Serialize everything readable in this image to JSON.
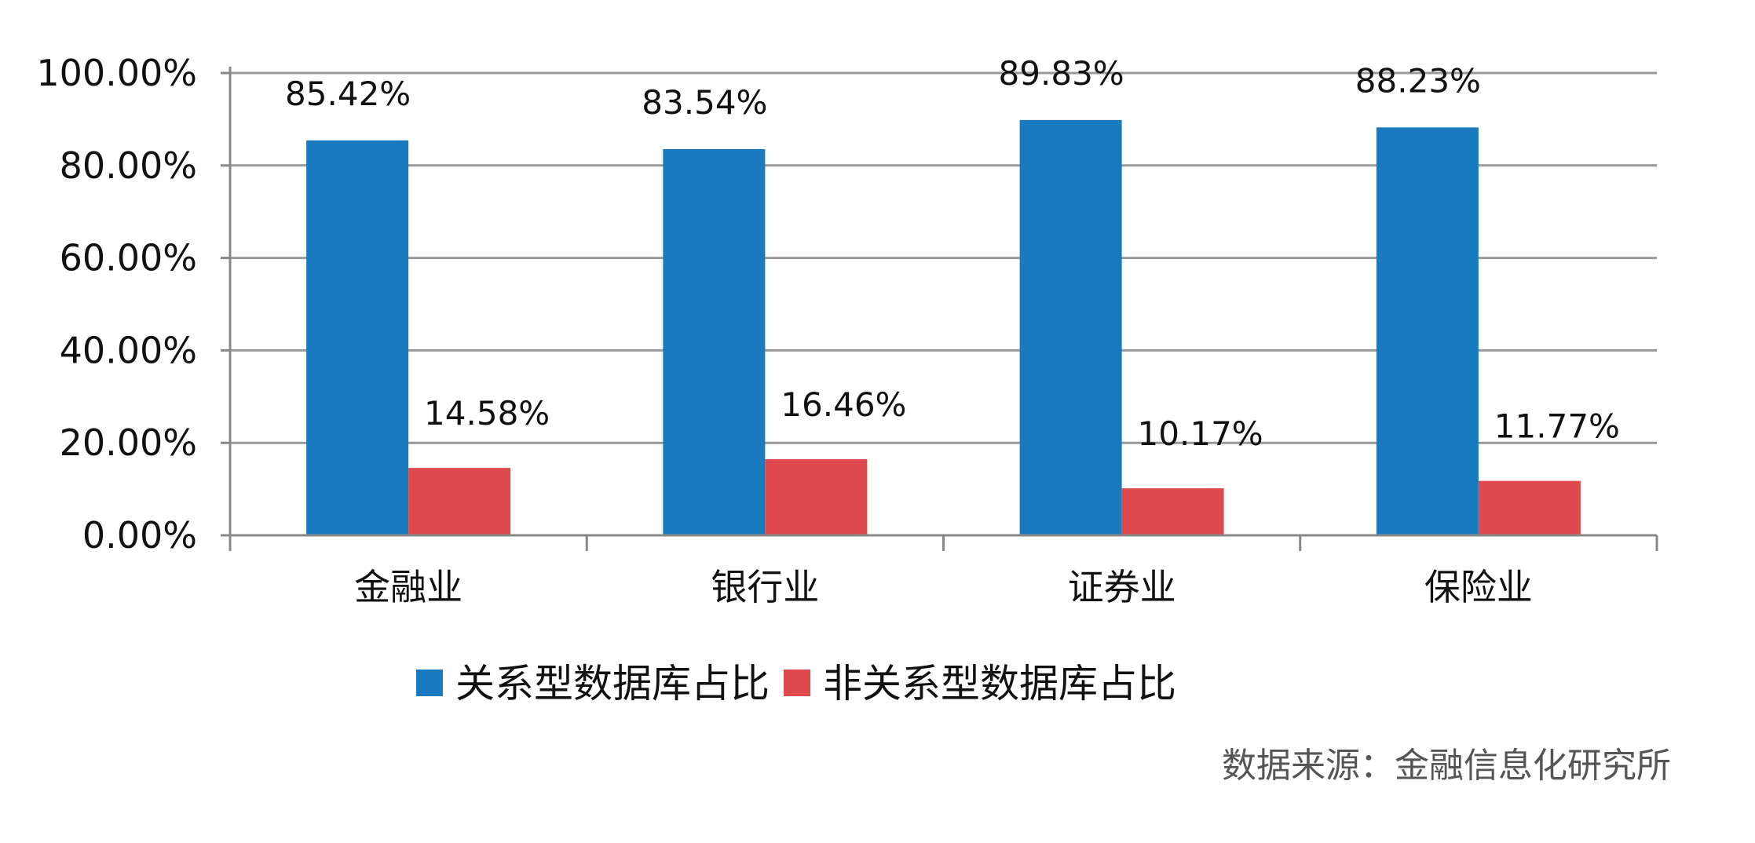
{
  "chart_data": {
    "type": "bar",
    "categories": [
      "金融业",
      "银行业",
      "证券业",
      "保险业"
    ],
    "series": [
      {
        "name": "关系型数据库占比",
        "values": [
          85.42,
          83.54,
          89.83,
          88.23
        ],
        "labels": [
          "85.42%",
          "83.54%",
          "89.83%",
          "88.23%"
        ],
        "color": "#1a7abf"
      },
      {
        "name": "非关系型数据库占比",
        "values": [
          14.58,
          16.46,
          10.17,
          11.77
        ],
        "labels": [
          "14.58%",
          "16.46%",
          "10.17%",
          "11.77%"
        ],
        "color": "#de4a4d"
      }
    ],
    "yticks": [
      0,
      20,
      40,
      60,
      80,
      100
    ],
    "ytick_labels": [
      "0.00%",
      "20.00%",
      "40.00%",
      "60.00%",
      "80.00%",
      "100.00%"
    ],
    "ylim": [
      0,
      100
    ],
    "grid": true,
    "legend_position": "bottom",
    "source": "数据来源：金融信息化研究所",
    "gridline_color": "#999999",
    "axis_color": "#888888"
  }
}
